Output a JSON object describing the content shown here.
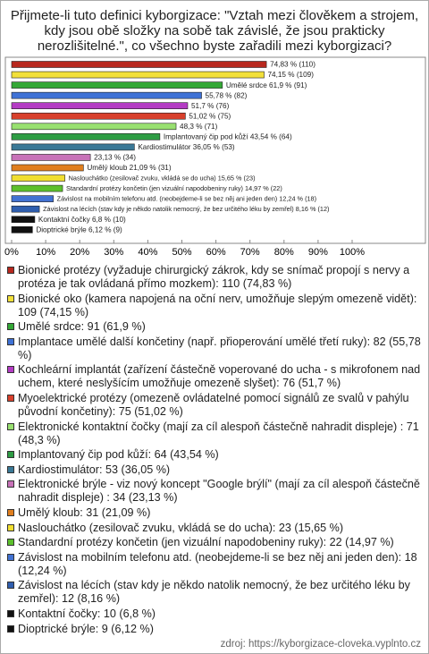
{
  "chart_data": {
    "type": "bar",
    "orientation": "horizontal",
    "title": "Přijmete-li tuto definici kyborgizace: \"Vztah mezi člověkem a strojem, kdy jsou obě složky na sobě tak závislé, že jsou prakticky nerozlišitelné.\", co všechno byste zařadili mezi kyborgizaci?",
    "values": [
      74.83,
      74.15,
      61.9,
      55.78,
      51.7,
      51.02,
      48.3,
      43.54,
      36.05,
      23.13,
      21.09,
      15.65,
      14.97,
      12.24,
      8.16,
      6.8,
      6.12
    ],
    "value_labels": [
      "74,83 % (110)",
      "74,15 % (109)",
      "Umělé srdce 61,9 % (91)",
      "55,78 % (82)",
      "51,7 % (76)",
      "51,02 % (75)",
      "48,3 % (71)",
      "Implantovaný čip pod kůží 43,54 % (64)",
      "Kardiostimulátor 36,05 % (53)",
      "23,13 % (34)",
      "Umělý kloub 21,09 % (31)",
      "Naslouchátko (zesilovač zvuku, vkládá se do ucha) 15,65 % (23)",
      "Standardní protézy končetin (jen vizuální napodobeniny ruky) 14,97 % (22)",
      "Závislost na mobilním telefonu atd. (neobejdeme-li se bez něj ani jeden den) 12,24 % (18)",
      "Závislost na lécích (stav kdy je někdo natolik nemocný, že bez určitého léku by zemřel) 8,16 % (12)",
      "Kontaktní čočky 6,8 % (10)",
      "Dioptrické brýle 6,12 % (9)"
    ],
    "colors": [
      "#b8281e",
      "#f2e03a",
      "#34a836",
      "#3f72d6",
      "#b43cc4",
      "#d8402c",
      "#98e070",
      "#2e9c44",
      "#3a7896",
      "#c872b8",
      "#e07e1e",
      "#f0de30",
      "#5cc02c",
      "#4272d2",
      "#2f5eae",
      "#111111",
      "#111111"
    ],
    "legend": [
      "Bionické protézy (vyžaduje chirurgický zákrok, kdy se snímač propojí s nervy a protéza je tak ovládaná přímo mozkem): 110 (74,83 %)",
      "Bionické oko (kamera napojená na oční nerv, umožňuje slepým omezeně vidět): 109 (74,15 %)",
      "Umělé srdce: 91 (61,9 %)",
      "Implantace umělé další končetiny (např. přioperování umělé třetí ruky): 82 (55,78 %)",
      "Kochleární implantát (zařízení částečně voperované do ucha - s mikrofonem nad uchem, které neslyšícím umožňuje omezeně slyšet): 76 (51,7 %)",
      "Myoelektrické protézy (omezeně ovládatelné pomocí signálů ze svalů v pahýlu původní končetiny): 75 (51,02 %)",
      "Elektronické kontaktní čočky (mají za cíl alespoň částečně nahradit displeje) : 71 (48,3 %)",
      "Implantovaný čip pod kůží: 64 (43,54 %)",
      "Kardiostimulátor: 53 (36,05 %)",
      "Elektronické brýle - viz nový koncept \"Google brýlí\" (mají za cíl alespoň částečně nahradit displeje) : 34 (23,13 %)",
      "Umělý kloub: 31 (21,09 %)",
      "Naslouchátko (zesilovač zvuku, vkládá se do ucha): 23 (15,65 %)",
      "Standardní protézy končetin (jen vizuální napodobeniny ruky): 22 (14,97 %)",
      "Závislost na mobilním telefonu atd. (neobejdeme-li se bez něj ani jeden den): 18 (12,24 %)",
      "Závislost na lécích (stav kdy je někdo natolik nemocný, že bez určitého léku by zemřel): 12 (8,16 %)",
      "Kontaktní čočky: 10 (6,8 %)",
      "Dioptrické brýle: 9 (6,12 %)"
    ],
    "xlim": [
      0,
      100
    ],
    "xticks": [
      {
        "value": 0,
        "label": "0%"
      },
      {
        "value": 10,
        "label": "10%"
      },
      {
        "value": 20,
        "label": "20%"
      },
      {
        "value": 30,
        "label": "30%"
      },
      {
        "value": 40,
        "label": "40%"
      },
      {
        "value": 50,
        "label": "50%"
      },
      {
        "value": 60,
        "label": "60%"
      },
      {
        "value": 70,
        "label": "70%"
      },
      {
        "value": 80,
        "label": "80%"
      },
      {
        "value": 90,
        "label": "90%"
      },
      {
        "value": 100,
        "label": "100%"
      }
    ],
    "source": "zdroj: https://kyborgizace-cloveka.vyplnto.cz"
  }
}
